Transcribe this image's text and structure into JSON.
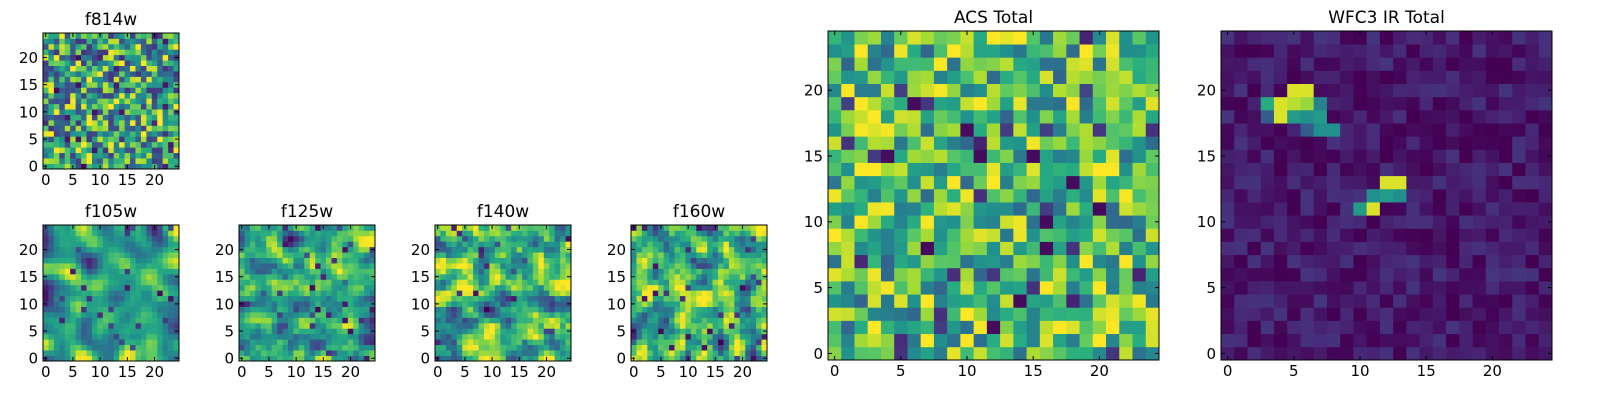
{
  "chart_data": [
    {
      "type": "heatmap",
      "title": "f814w",
      "xlabel": "",
      "ylabel": "",
      "xlim": [
        0,
        25
      ],
      "ylim": [
        0,
        25
      ],
      "xticks": [
        0,
        5,
        10,
        15,
        20
      ],
      "yticks": [
        0,
        5,
        10,
        15,
        20
      ],
      "grid": false,
      "colormap": "viridis",
      "grid_size": [
        25,
        25
      ],
      "character": "uniform random noise",
      "seed": 11,
      "smooth": 0,
      "bias": 0.6,
      "spread": 0.2,
      "hotspots": [],
      "darkspots": []
    },
    {
      "type": "heatmap",
      "title": "f105w",
      "xlabel": "",
      "ylabel": "",
      "xlim": [
        0,
        25
      ],
      "ylim": [
        0,
        25
      ],
      "xticks": [
        0,
        5,
        10,
        15,
        20
      ],
      "yticks": [
        0,
        5,
        10,
        15,
        20
      ],
      "grid": false,
      "colormap": "viridis",
      "grid_size": [
        25,
        25
      ],
      "character": "smoothed noise",
      "seed": 23,
      "smooth": 2,
      "bias": 0.62,
      "spread": 0.26,
      "hotspots": [],
      "darkspots": []
    },
    {
      "type": "heatmap",
      "title": "f125w",
      "xlabel": "",
      "ylabel": "",
      "xlim": [
        0,
        25
      ],
      "ylim": [
        0,
        25
      ],
      "xticks": [
        0,
        5,
        10,
        15,
        20
      ],
      "yticks": [
        0,
        5,
        10,
        15,
        20
      ],
      "grid": false,
      "colormap": "viridis",
      "grid_size": [
        25,
        25
      ],
      "character": "smoothed noise",
      "seed": 37,
      "smooth": 1,
      "bias": 0.6,
      "spread": 0.26,
      "hotspots": [],
      "darkspots": []
    },
    {
      "type": "heatmap",
      "title": "f140w",
      "xlabel": "",
      "ylabel": "",
      "xlim": [
        0,
        25
      ],
      "ylim": [
        0,
        25
      ],
      "xticks": [
        0,
        5,
        10,
        15,
        20
      ],
      "yticks": [
        0,
        5,
        10,
        15,
        20
      ],
      "grid": false,
      "colormap": "viridis",
      "grid_size": [
        25,
        25
      ],
      "character": "smoothed noise",
      "seed": 51,
      "smooth": 1,
      "bias": 0.6,
      "spread": 0.28,
      "hotspots": [],
      "darkspots": []
    },
    {
      "type": "heatmap",
      "title": "f160w",
      "xlabel": "",
      "ylabel": "",
      "xlim": [
        0,
        25
      ],
      "ylim": [
        0,
        25
      ],
      "xticks": [
        0,
        5,
        10,
        15,
        20
      ],
      "yticks": [
        0,
        5,
        10,
        15,
        20
      ],
      "grid": false,
      "colormap": "viridis",
      "grid_size": [
        25,
        25
      ],
      "character": "smoothed noise",
      "seed": 67,
      "smooth": 1,
      "bias": 0.6,
      "spread": 0.28,
      "hotspots": [],
      "darkspots": []
    },
    {
      "type": "heatmap",
      "title": "ACS Total",
      "xlabel": "",
      "ylabel": "",
      "xlim": [
        0,
        25
      ],
      "ylim": [
        0,
        25
      ],
      "xticks": [
        0,
        5,
        10,
        15,
        20
      ],
      "yticks": [
        0,
        5,
        10,
        15,
        20
      ],
      "grid": false,
      "colormap": "viridis",
      "grid_size": [
        25,
        25
      ],
      "character": "uniform random noise, mostly green-yellow",
      "seed": 83,
      "smooth": 0,
      "bias": 0.68,
      "spread": 0.16,
      "hotspots": [],
      "darkspots": [
        [
          6,
          19
        ],
        [
          10,
          17
        ],
        [
          4,
          15
        ],
        [
          15,
          15
        ],
        [
          18,
          13
        ],
        [
          7,
          8
        ],
        [
          16,
          8
        ],
        [
          14,
          4
        ],
        [
          12,
          2
        ]
      ]
    },
    {
      "type": "heatmap",
      "title": "WFC3 IR Total",
      "xlabel": "",
      "ylabel": "",
      "xlim": [
        0,
        25
      ],
      "ylim": [
        0,
        25
      ],
      "xticks": [
        0,
        5,
        10,
        15,
        20
      ],
      "yticks": [
        0,
        5,
        10,
        15,
        20
      ],
      "grid": false,
      "colormap": "viridis",
      "grid_size": [
        25,
        25
      ],
      "character": "dark background with two bright sources",
      "seed": 97,
      "smooth": 0,
      "bias": 0.07,
      "spread": 0.04,
      "hotspots": [
        [
          5,
          20,
          0.95
        ],
        [
          6,
          20,
          0.95
        ],
        [
          4,
          19,
          0.95
        ],
        [
          5,
          19,
          0.9
        ],
        [
          6,
          19,
          0.85
        ],
        [
          3,
          19,
          0.62
        ],
        [
          7,
          19,
          0.45
        ],
        [
          4,
          18,
          0.95
        ],
        [
          5,
          18,
          0.55
        ],
        [
          6,
          18,
          0.5
        ],
        [
          7,
          18,
          0.55
        ],
        [
          3,
          18,
          0.3
        ],
        [
          7,
          17,
          0.5
        ],
        [
          8,
          17,
          0.5
        ],
        [
          6,
          17,
          0.3
        ],
        [
          12,
          13,
          0.95
        ],
        [
          13,
          13,
          0.95
        ],
        [
          11,
          12,
          0.5
        ],
        [
          12,
          12,
          0.55
        ],
        [
          13,
          12,
          0.5
        ],
        [
          10,
          11,
          0.55
        ],
        [
          11,
          11,
          0.95
        ]
      ],
      "darkspots": []
    }
  ]
}
